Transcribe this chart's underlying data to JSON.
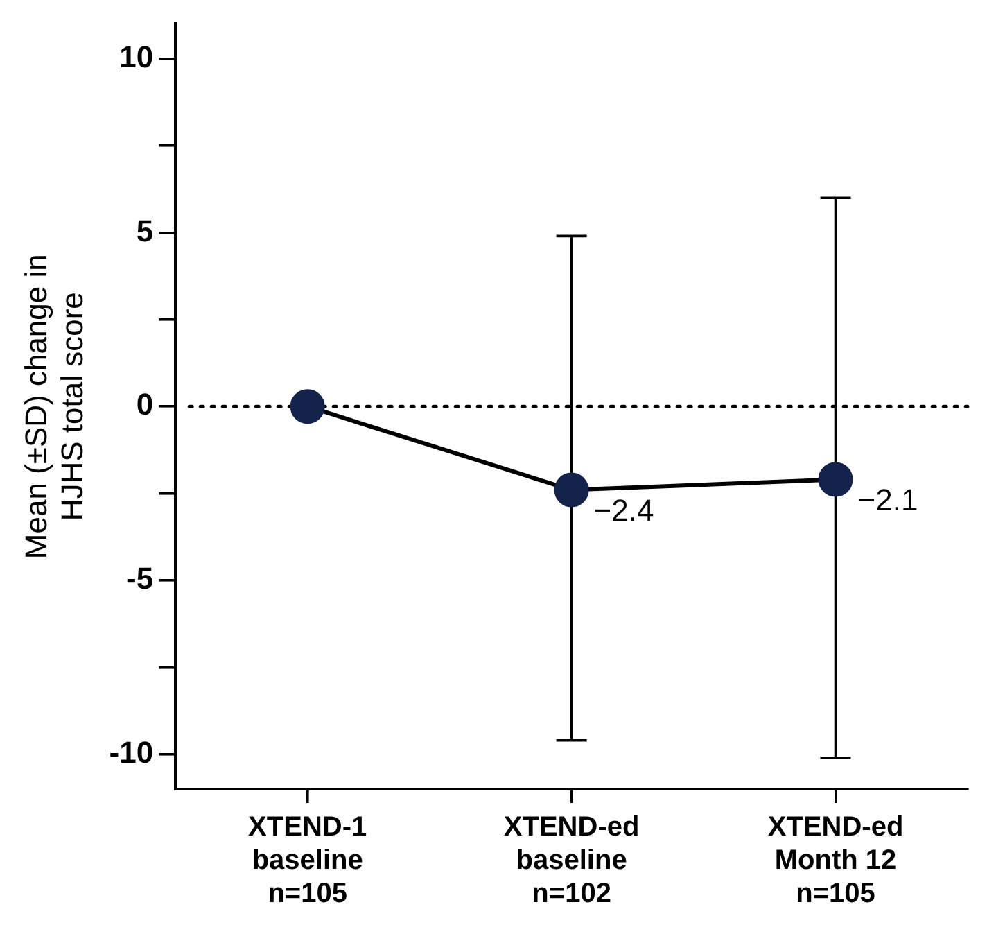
{
  "chart_data": {
    "type": "line",
    "ylabel": "Mean (±SD) change in\nHJHS total score",
    "categories": [
      "XTEND-1\nbaseline\nn=105",
      "XTEND-ed\nbaseline\nn=102",
      "XTEND-ed\nMonth 12\nn=105"
    ],
    "series": [
      {
        "color": "#13234b",
        "values": [
          0,
          -2.4,
          -2.1
        ],
        "errors": [
          null,
          [
            -9.6,
            4.9
          ],
          [
            -10.1,
            6.0
          ]
        ],
        "value_labels": [
          null,
          "−2.4",
          "−2.1"
        ]
      }
    ],
    "ylim": [
      -11,
      11
    ],
    "yticks": [
      -10,
      {
        "value": -7.5,
        "label": null
      },
      -5,
      {
        "value": -2.5,
        "label": null
      },
      0,
      {
        "value": 2.5,
        "label": null
      },
      5,
      {
        "value": 7.5,
        "label": null
      },
      10
    ],
    "ref_lines": [
      {
        "axis": "y",
        "value": 0,
        "line_style": "dotted"
      }
    ],
    "grid": false,
    "legend": false,
    "marker": "circle",
    "line_style": "solid"
  }
}
